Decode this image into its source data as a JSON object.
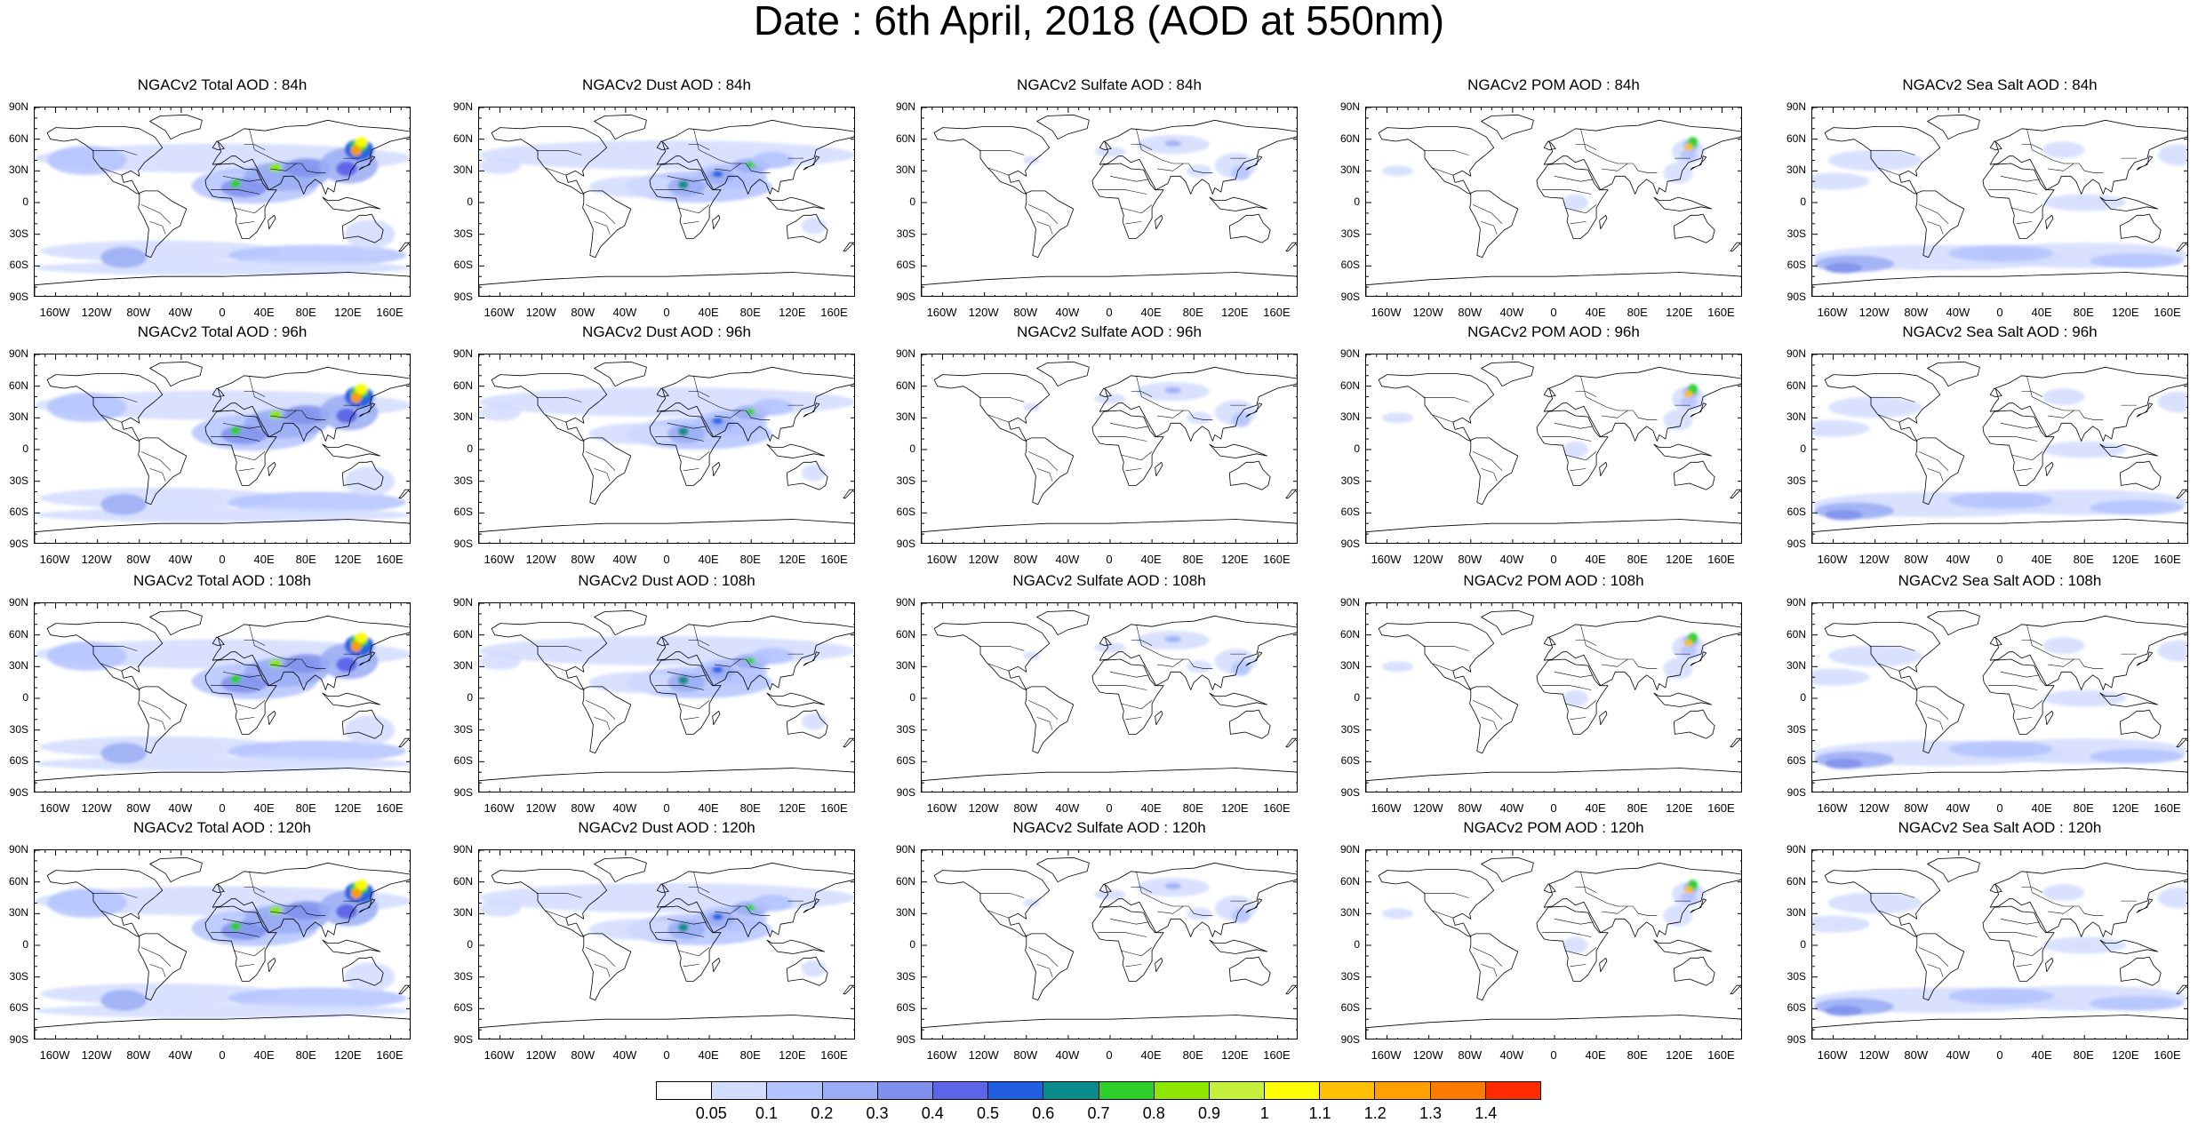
{
  "figure": {
    "title": "Date : 6th April, 2018 (AOD at 550nm)"
  },
  "panels": [
    {
      "title": "NGACv2 Total AOD : 84h",
      "field": "total"
    },
    {
      "title": "NGACv2 Dust AOD : 84h",
      "field": "dust"
    },
    {
      "title": "NGACv2 Sulfate AOD : 84h",
      "field": "sulfate"
    },
    {
      "title": "NGACv2 POM AOD : 84h",
      "field": "pom"
    },
    {
      "title": "NGACv2 Sea Salt AOD : 84h",
      "field": "seasalt"
    },
    {
      "title": "NGACv2 Total AOD : 96h",
      "field": "total"
    },
    {
      "title": "NGACv2 Dust AOD : 96h",
      "field": "dust"
    },
    {
      "title": "NGACv2 Sulfate AOD : 96h",
      "field": "sulfate"
    },
    {
      "title": "NGACv2 POM AOD : 96h",
      "field": "pom"
    },
    {
      "title": "NGACv2 Sea Salt AOD : 96h",
      "field": "seasalt"
    },
    {
      "title": "NGACv2 Total AOD : 108h",
      "field": "total"
    },
    {
      "title": "NGACv2 Dust AOD : 108h",
      "field": "dust"
    },
    {
      "title": "NGACv2 Sulfate AOD : 108h",
      "field": "sulfate"
    },
    {
      "title": "NGACv2 POM AOD : 108h",
      "field": "pom"
    },
    {
      "title": "NGACv2 Sea Salt AOD : 108h",
      "field": "seasalt"
    },
    {
      "title": "NGACv2 Total AOD : 120h",
      "field": "total"
    },
    {
      "title": "NGACv2 Dust AOD : 120h",
      "field": "dust"
    },
    {
      "title": "NGACv2 Sulfate AOD : 120h",
      "field": "sulfate"
    },
    {
      "title": "NGACv2 POM AOD : 120h",
      "field": "pom"
    },
    {
      "title": "NGACv2 Sea Salt  AOD : 120h",
      "field": "seasalt"
    }
  ],
  "axes": {
    "lat_labels": [
      "90N",
      "60N",
      "30N",
      "0",
      "30S",
      "60S",
      "90S"
    ],
    "lon_labels": [
      "160W",
      "120W",
      "80W",
      "40W",
      "0",
      "40E",
      "80E",
      "120E",
      "160E"
    ]
  },
  "colorbar": {
    "labels": [
      "0.05",
      "0.1",
      "0.2",
      "0.3",
      "0.4",
      "0.5",
      "0.6",
      "0.7",
      "0.8",
      "0.9",
      "1",
      "1.1",
      "1.2",
      "1.3",
      "1.4"
    ],
    "colors": [
      "#ffffff",
      "#d2dcff",
      "#b4c3ff",
      "#9aadf5",
      "#7f91ec",
      "#5c64e8",
      "#1f5fe0",
      "#0a8a8a",
      "#2ccf2c",
      "#8fe600",
      "#c6f03c",
      "#ffff00",
      "#ffc000",
      "#ff9f00",
      "#ff7a00",
      "#ff2a00"
    ]
  }
}
